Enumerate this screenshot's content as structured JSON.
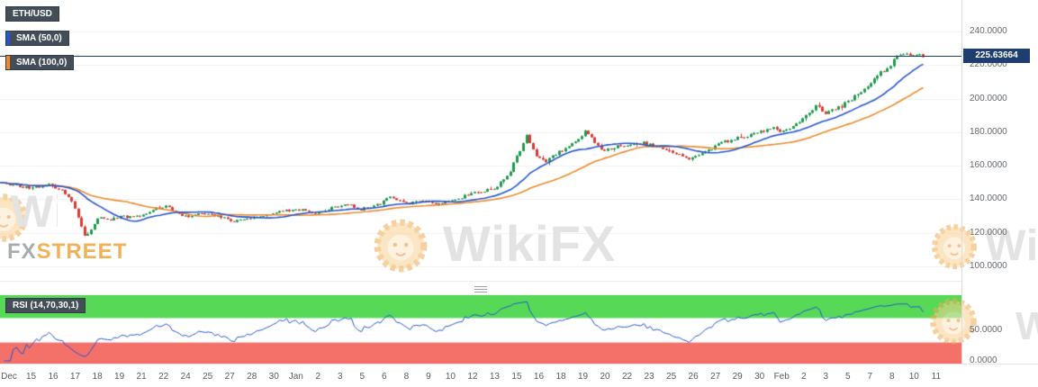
{
  "chart": {
    "symbol": "ETH/USD",
    "legend": {
      "sma50": "SMA (50,0)",
      "sma100": "SMA (100,0)",
      "rsi": "RSI (14,70,30,1)"
    },
    "current_price": "225.63664"
  },
  "price_axis_ticks": [
    "240.0000",
    "220.0000",
    "200.0000",
    "180.0000",
    "160.0000",
    "140.0000",
    "120.0000",
    "100.0000"
  ],
  "rsi_axis_ticks": [
    "50.0000",
    "0.0000"
  ],
  "watermarks": {
    "brand": "WikiFX",
    "footer_prefix": "FX",
    "footer_suffix": "STREET"
  },
  "colors": {
    "up": "#209a4e",
    "down": "#dc3b34",
    "sma50": "#2456cf",
    "sma100": "#ec8a2a",
    "rsi_line": "#2456cf",
    "price_line": "#1d3e6f",
    "badge_bg": "#444e58",
    "overbought_zone": "#57d957",
    "oversold_zone": "#f4716a",
    "grid": "#f1f1f1",
    "axis_text": "#61676d"
  },
  "chart_data": {
    "type": "candlestick",
    "symbol": "ETH/USD",
    "last_price": 225.63664,
    "y_axis": {
      "min": 100,
      "max": 240,
      "tick_step": 20,
      "ticks": [
        240,
        220,
        200,
        180,
        160,
        140,
        120,
        100
      ]
    },
    "x_categories": [
      "Dec",
      "15",
      "16",
      "17",
      "18",
      "19",
      "21",
      "22",
      "24",
      "25",
      "27",
      "28",
      "30",
      "Jan",
      "2",
      "3",
      "5",
      "6",
      "8",
      "9",
      "10",
      "12",
      "13",
      "15",
      "16",
      "18",
      "19",
      "20",
      "22",
      "23",
      "25",
      "26",
      "27",
      "29",
      "30",
      "Feb",
      "2",
      "3",
      "5",
      "7",
      "8",
      "10",
      "11"
    ],
    "overlays": [
      {
        "type": "SMA",
        "period": 50,
        "color_key": "sma50"
      },
      {
        "type": "SMA",
        "period": 100,
        "color_key": "sma100"
      }
    ],
    "lower_panel": {
      "type": "RSI",
      "params": [
        14,
        70,
        30,
        1
      ],
      "overbought": 70,
      "oversold": 30,
      "range": [
        0,
        100
      ],
      "axis_ticks": [
        50,
        0
      ]
    },
    "candle_count": 285,
    "price_path_anchors": [
      [
        0,
        150
      ],
      [
        0.029,
        147
      ],
      [
        0.054,
        148.5
      ],
      [
        0.073,
        143
      ],
      [
        0.083,
        132
      ],
      [
        0.091,
        118
      ],
      [
        0.098,
        121
      ],
      [
        0.107,
        130
      ],
      [
        0.117,
        127.5
      ],
      [
        0.132,
        130
      ],
      [
        0.146,
        129
      ],
      [
        0.166,
        134
      ],
      [
        0.18,
        136
      ],
      [
        0.195,
        131
      ],
      [
        0.205,
        130
      ],
      [
        0.224,
        132
      ],
      [
        0.254,
        127
      ],
      [
        0.283,
        130
      ],
      [
        0.302,
        133
      ],
      [
        0.322,
        134
      ],
      [
        0.341,
        132
      ],
      [
        0.361,
        135
      ],
      [
        0.376,
        137
      ],
      [
        0.39,
        134
      ],
      [
        0.41,
        137
      ],
      [
        0.424,
        142
      ],
      [
        0.439,
        137
      ],
      [
        0.459,
        139
      ],
      [
        0.478,
        137
      ],
      [
        0.498,
        141
      ],
      [
        0.517,
        144
      ],
      [
        0.537,
        147
      ],
      [
        0.551,
        155
      ],
      [
        0.564,
        170
      ],
      [
        0.571,
        178
      ],
      [
        0.58,
        166
      ],
      [
        0.59,
        162
      ],
      [
        0.605,
        168
      ],
      [
        0.62,
        173
      ],
      [
        0.629,
        177
      ],
      [
        0.634,
        181
      ],
      [
        0.646,
        172
      ],
      [
        0.656,
        169
      ],
      [
        0.673,
        172
      ],
      [
        0.693,
        174
      ],
      [
        0.712,
        171
      ],
      [
        0.727,
        169
      ],
      [
        0.746,
        164
      ],
      [
        0.766,
        169
      ],
      [
        0.78,
        173
      ],
      [
        0.795,
        176
      ],
      [
        0.81,
        178
      ],
      [
        0.824,
        180
      ],
      [
        0.837,
        183
      ],
      [
        0.849,
        180
      ],
      [
        0.863,
        185
      ],
      [
        0.873,
        189
      ],
      [
        0.883,
        196
      ],
      [
        0.896,
        191
      ],
      [
        0.907,
        194
      ],
      [
        0.922,
        199
      ],
      [
        0.934,
        205
      ],
      [
        0.946,
        211
      ],
      [
        0.958,
        217
      ],
      [
        0.968,
        222
      ],
      [
        0.978,
        228
      ],
      [
        0.987,
        224
      ],
      [
        0.993,
        227
      ],
      [
        1,
        225.64
      ]
    ]
  }
}
